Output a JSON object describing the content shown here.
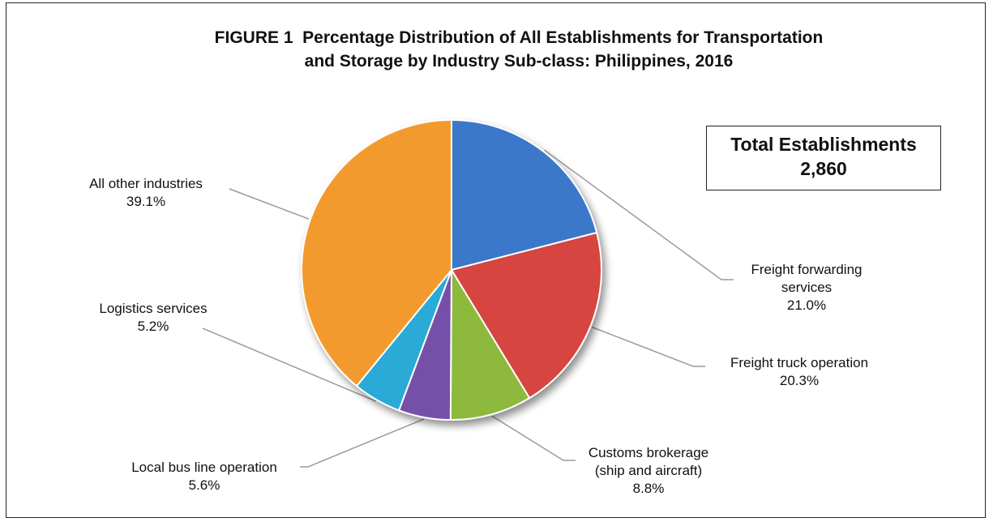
{
  "chart_data": {
    "type": "pie",
    "title_line1": "FIGURE 1  Percentage Distribution of All Establishments for Transportation",
    "title_line2": "and Storage by Industry Sub-class: Philippines, 2016",
    "total_label": "Total Establishments",
    "total_value": "2,860",
    "slices": [
      {
        "name_line1": "Freight forwarding",
        "name_line2": "services",
        "value": 21.0,
        "value_label": "21.0%",
        "color": "#3A78C9"
      },
      {
        "name_line1": "Freight truck operation",
        "name_line2": "",
        "value": 20.3,
        "value_label": "20.3%",
        "color": "#D64541"
      },
      {
        "name_line1": "Customs brokerage",
        "name_line2": "(ship and aircraft)",
        "value": 8.8,
        "value_label": "8.8%",
        "color": "#8DB93E"
      },
      {
        "name_line1": "Local bus line operation",
        "name_line2": "",
        "value": 5.6,
        "value_label": "5.6%",
        "color": "#7650A8"
      },
      {
        "name_line1": "Logistics services",
        "name_line2": "",
        "value": 5.2,
        "value_label": "5.2%",
        "color": "#2AAAD6"
      },
      {
        "name_line1": "All other industries",
        "name_line2": "",
        "value": 39.1,
        "value_label": "39.1%",
        "color": "#F39A2E"
      }
    ]
  }
}
